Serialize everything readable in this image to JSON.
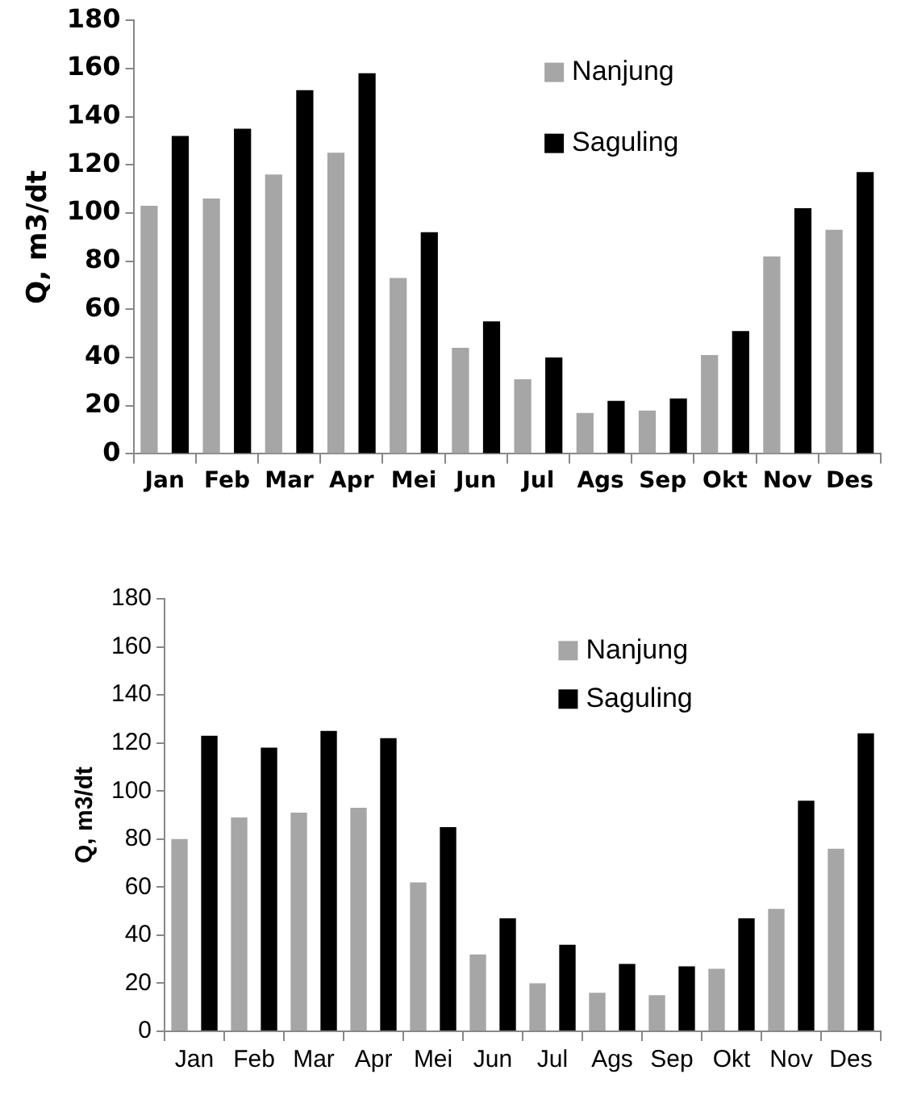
{
  "chart_data": [
    {
      "type": "bar",
      "ylabel": "Q, m3/dt",
      "categories": [
        "Jan",
        "Feb",
        "Mar",
        "Apr",
        "Mei",
        "Jun",
        "Jul",
        "Ags",
        "Sep",
        "Okt",
        "Nov",
        "Des"
      ],
      "series": [
        {
          "name": "Nanjung",
          "color": "#a6a6a6",
          "values": [
            103,
            106,
            116,
            125,
            73,
            44,
            31,
            17,
            18,
            41,
            82,
            93
          ]
        },
        {
          "name": "Saguling",
          "color": "#000000",
          "values": [
            132,
            135,
            151,
            158,
            92,
            55,
            40,
            22,
            23,
            51,
            102,
            117
          ]
        }
      ],
      "ylim": [
        0,
        180
      ],
      "yticks": [
        0,
        20,
        40,
        60,
        80,
        100,
        120,
        140,
        160,
        180
      ],
      "grid": false,
      "legend": "top right"
    },
    {
      "type": "bar",
      "ylabel": "Q, m3/dt",
      "categories": [
        "Jan",
        "Feb",
        "Mar",
        "Apr",
        "Mei",
        "Jun",
        "Jul",
        "Ags",
        "Sep",
        "Okt",
        "Nov",
        "Des"
      ],
      "series": [
        {
          "name": "Nanjung",
          "color": "#a6a6a6",
          "values": [
            80,
            89,
            91,
            93,
            62,
            32,
            20,
            16,
            15,
            26,
            51,
            76
          ]
        },
        {
          "name": "Saguling",
          "color": "#000000",
          "values": [
            123,
            118,
            125,
            122,
            85,
            47,
            36,
            28,
            27,
            47,
            96,
            124
          ]
        }
      ],
      "ylim": [
        0,
        180
      ],
      "yticks": [
        0,
        20,
        40,
        60,
        80,
        100,
        120,
        140,
        160,
        180
      ],
      "grid": false,
      "legend": "top right"
    }
  ]
}
